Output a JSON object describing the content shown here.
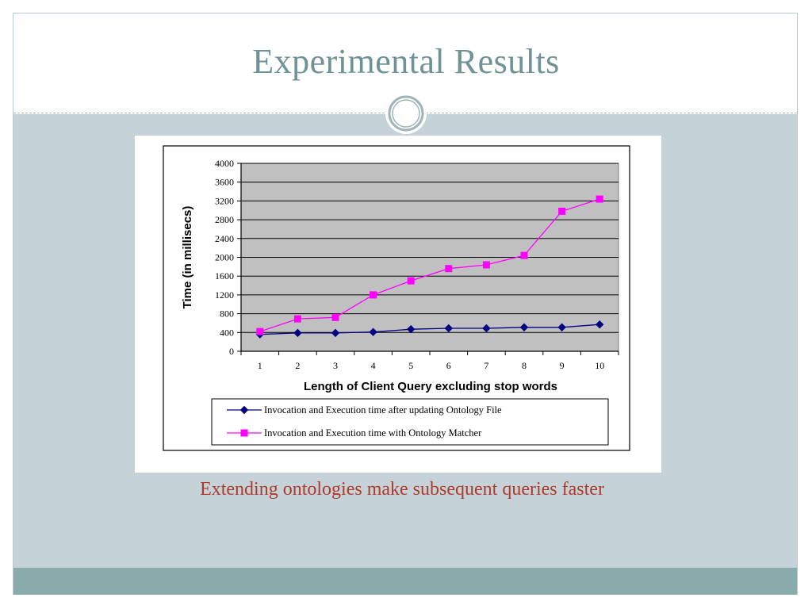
{
  "slide": {
    "title": "Experimental Results",
    "caption": "Extending ontologies make subsequent queries faster"
  },
  "colors": {
    "title": "#6f9295",
    "content_bg": "#c5d3d9",
    "bottom_bar": "#8aabac",
    "caption": "#b0392b",
    "plot_bg": "#c0c0c0",
    "series1": "#000080",
    "series2": "#ff00ff"
  },
  "chart_data": {
    "type": "line",
    "xlabel": "Length of Client Query excluding stop words",
    "ylabel": "Time (in millisecs)",
    "x": [
      1,
      2,
      3,
      4,
      5,
      6,
      7,
      8,
      9,
      10
    ],
    "ylim": [
      0,
      4000
    ],
    "yticks": [
      0,
      400,
      800,
      1200,
      1600,
      2000,
      2400,
      2800,
      3200,
      3600,
      4000
    ],
    "grid": "horizontal",
    "legend_position": "bottom",
    "series": [
      {
        "name": "Invocation and Execution time after updating Ontology File",
        "marker": "diamond",
        "color": "#000080",
        "values": [
          360,
          390,
          390,
          410,
          470,
          490,
          490,
          510,
          510,
          570
        ]
      },
      {
        "name": "Invocation and Execution time with Ontology Matcher",
        "marker": "square",
        "color": "#ff00ff",
        "values": [
          420,
          690,
          720,
          1200,
          1500,
          1760,
          1840,
          2040,
          2980,
          3240
        ]
      }
    ]
  }
}
